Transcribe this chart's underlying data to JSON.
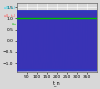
{
  "bg_color": "#d8d8d8",
  "grid_color": "#ffffff",
  "xlim": [
    0,
    400
  ],
  "ylim": [
    -1.4,
    1.7
  ],
  "yticks": [
    -1.0,
    -0.5,
    0.0,
    0.5,
    1.0,
    1.5
  ],
  "xticks": [
    50,
    100,
    150,
    200,
    250,
    300,
    350
  ],
  "steady_state_value": 1.0,
  "steady_state_color": "#00bb00",
  "wave_freq": 0.2,
  "n_points": 4000,
  "t_max": 400,
  "amplitude": 1.3,
  "cyan_color": "#00ddff",
  "red_color": "#ff4444",
  "blue_color": "#3333bb",
  "alpha_cyan": 0.55,
  "alpha_red": 0.45,
  "alpha_blue": 0.35,
  "linewidth": 0.35,
  "xlabel": "t_n",
  "label_fontsize": 3.5,
  "tick_fontsize": 3.2,
  "n_waves_cyan": 25,
  "n_waves_red": 20,
  "n_waves_blue": 8
}
